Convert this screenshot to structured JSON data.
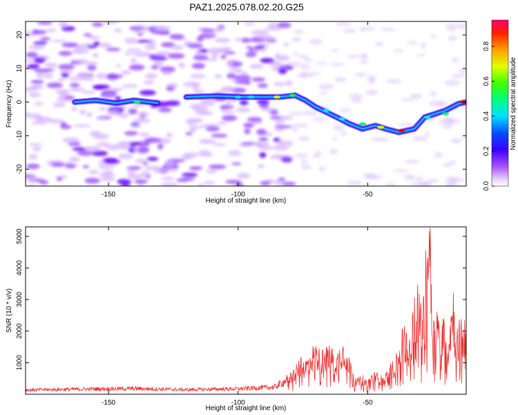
{
  "title": "PAZ1.2025.078.02.20.G25",
  "colors": {
    "snr_line": "#ee2c2c",
    "blob_light": "#d7b6ff",
    "blob_mid": "#9b4dff",
    "blob_dark": "#6a00ff"
  },
  "chart_data": [
    {
      "type": "heatmap",
      "title": "PAZ1.2025.078.02.20.G25",
      "xlabel": "Height of straight line (km)",
      "ylabel": "Frequency (Hz)",
      "xlim": [
        -182,
        -12
      ],
      "ylim": [
        -25,
        24
      ],
      "xticks": [
        -150,
        -100,
        -50
      ],
      "yticks": [
        20,
        10,
        0,
        -10,
        -20
      ],
      "colorbar": {
        "label": "Normalized spectral amplitude",
        "range": [
          0,
          0.95
        ],
        "ticks": [
          0.0,
          0.2,
          0.4,
          0.6,
          0.8
        ],
        "tick_labels": [
          "0.0",
          "0.2",
          "0.4",
          "0.6",
          "0.8"
        ]
      },
      "ridge": [
        {
          "x": -163,
          "y": 0.0
        },
        {
          "x": -155,
          "y": 0.5
        },
        {
          "x": -147,
          "y": -0.3
        },
        {
          "x": -140,
          "y": 0.5
        },
        {
          "x": -131,
          "y": -0.3
        },
        {
          "x": -120,
          "y": 1.5
        },
        {
          "x": -108,
          "y": 1.8
        },
        {
          "x": -98,
          "y": 1.5
        },
        {
          "x": -90,
          "y": 1.5
        },
        {
          "x": -84,
          "y": 1.5
        },
        {
          "x": -78,
          "y": 2.0
        },
        {
          "x": -74,
          "y": 0.5
        },
        {
          "x": -70,
          "y": -1.5
        },
        {
          "x": -66,
          "y": -3.0
        },
        {
          "x": -62,
          "y": -4.5
        },
        {
          "x": -57,
          "y": -6.5
        },
        {
          "x": -52,
          "y": -8.0
        },
        {
          "x": -47,
          "y": -7.0
        },
        {
          "x": -43,
          "y": -8.0
        },
        {
          "x": -38,
          "y": -9.0
        },
        {
          "x": -32,
          "y": -8.0
        },
        {
          "x": -28,
          "y": -4.5
        },
        {
          "x": -24,
          "y": -3.5
        },
        {
          "x": -20,
          "y": -2.5
        },
        {
          "x": -15,
          "y": -0.5
        },
        {
          "x": -12,
          "y": 0.0
        }
      ],
      "peaks": [
        {
          "x": -139,
          "y": 0.0,
          "v": 0.5
        },
        {
          "x": -100,
          "y": 1.5,
          "v": 0.35
        },
        {
          "x": -95,
          "y": 1.5,
          "v": 0.45
        },
        {
          "x": -85,
          "y": 1.5,
          "v": 0.6
        },
        {
          "x": -79,
          "y": 2.0,
          "v": 0.5
        },
        {
          "x": -66,
          "y": -2.5,
          "v": 0.4
        },
        {
          "x": -60,
          "y": -5.0,
          "v": 0.4
        },
        {
          "x": -52,
          "y": -6.5,
          "v": 0.5
        },
        {
          "x": -45,
          "y": -7.5,
          "v": 0.6
        },
        {
          "x": -37,
          "y": -8.5,
          "v": 0.9
        },
        {
          "x": -27,
          "y": -4.5,
          "v": 0.45
        },
        {
          "x": -20,
          "y": -3.5,
          "v": 0.55
        },
        {
          "x": -13,
          "y": 0.0,
          "v": 0.85
        }
      ]
    },
    {
      "type": "line",
      "xlabel": "Height of straight line (km)",
      "ylabel": "SNR (10 * v/v)",
      "xlim": [
        -182,
        -12
      ],
      "ylim": [
        0,
        5300
      ],
      "xticks": [
        -150,
        -100,
        -50
      ],
      "yticks": [
        1000,
        2000,
        3000,
        4000,
        5000
      ],
      "series": [
        {
          "x": [
            -182,
            -160,
            -140,
            -120,
            -100,
            -86,
            -82,
            -78,
            -76,
            -74,
            -72,
            -70,
            -68,
            -66,
            -64,
            -62,
            -60,
            -58,
            -56,
            -54,
            -52,
            -50,
            -48,
            -46,
            -44,
            -42,
            -40,
            -38,
            -36,
            -34,
            -32,
            -30,
            -29,
            -28,
            -27,
            -26,
            -25,
            -24,
            -23,
            -22,
            -21,
            -20,
            -19,
            -18,
            -17,
            -16,
            -15,
            -14,
            -13,
            -12
          ],
          "y": [
            150,
            180,
            200,
            160,
            190,
            250,
            450,
            700,
            950,
            900,
            1200,
            1350,
            1100,
            1300,
            1250,
            1050,
            1450,
            1300,
            700,
            400,
            500,
            350,
            600,
            550,
            450,
            700,
            900,
            1200,
            1900,
            1300,
            2600,
            3200,
            1600,
            3700,
            4600,
            5300,
            2200,
            1900,
            2600,
            1500,
            2200,
            1700,
            1500,
            2300,
            2900,
            1600,
            1800,
            2100,
            1800,
            2100
          ]
        }
      ]
    }
  ]
}
